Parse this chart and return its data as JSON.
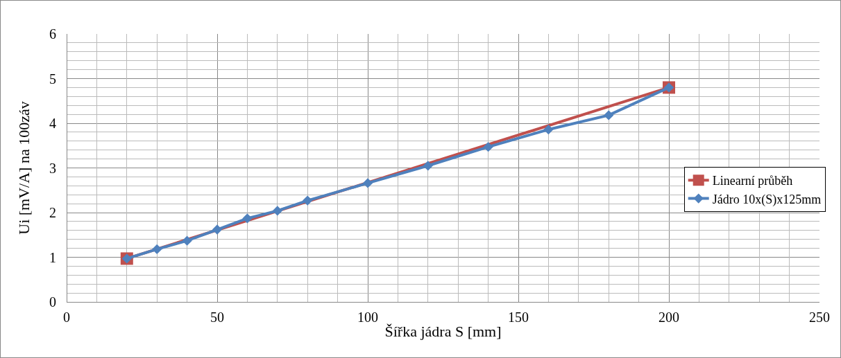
{
  "chart_data": {
    "type": "line",
    "xlabel": "Šířka jádra S [mm]",
    "ylabel": "Ui [mV/A] na 100záv",
    "xlim": [
      0,
      250
    ],
    "xticks": [
      0,
      50,
      100,
      150,
      200,
      250
    ],
    "ylim": [
      0,
      6
    ],
    "yticks": [
      0,
      1,
      2,
      3,
      4,
      5,
      6
    ],
    "grid": true,
    "legend": "right",
    "series": [
      {
        "name": "Linearní průběh",
        "color": "#c0504d",
        "marker": "square",
        "x": [
          20,
          200
        ],
        "values": [
          0.97,
          4.8
        ]
      },
      {
        "name": "Jádro 10x(S)x125mm",
        "color": "#4f81bd",
        "marker": "diamond",
        "x": [
          20,
          30,
          40,
          50,
          60,
          70,
          80,
          100,
          120,
          140,
          160,
          180,
          200
        ],
        "values": [
          0.97,
          1.18,
          1.37,
          1.62,
          1.87,
          2.04,
          2.27,
          2.66,
          3.05,
          3.47,
          3.86,
          4.18,
          4.8
        ]
      }
    ]
  }
}
